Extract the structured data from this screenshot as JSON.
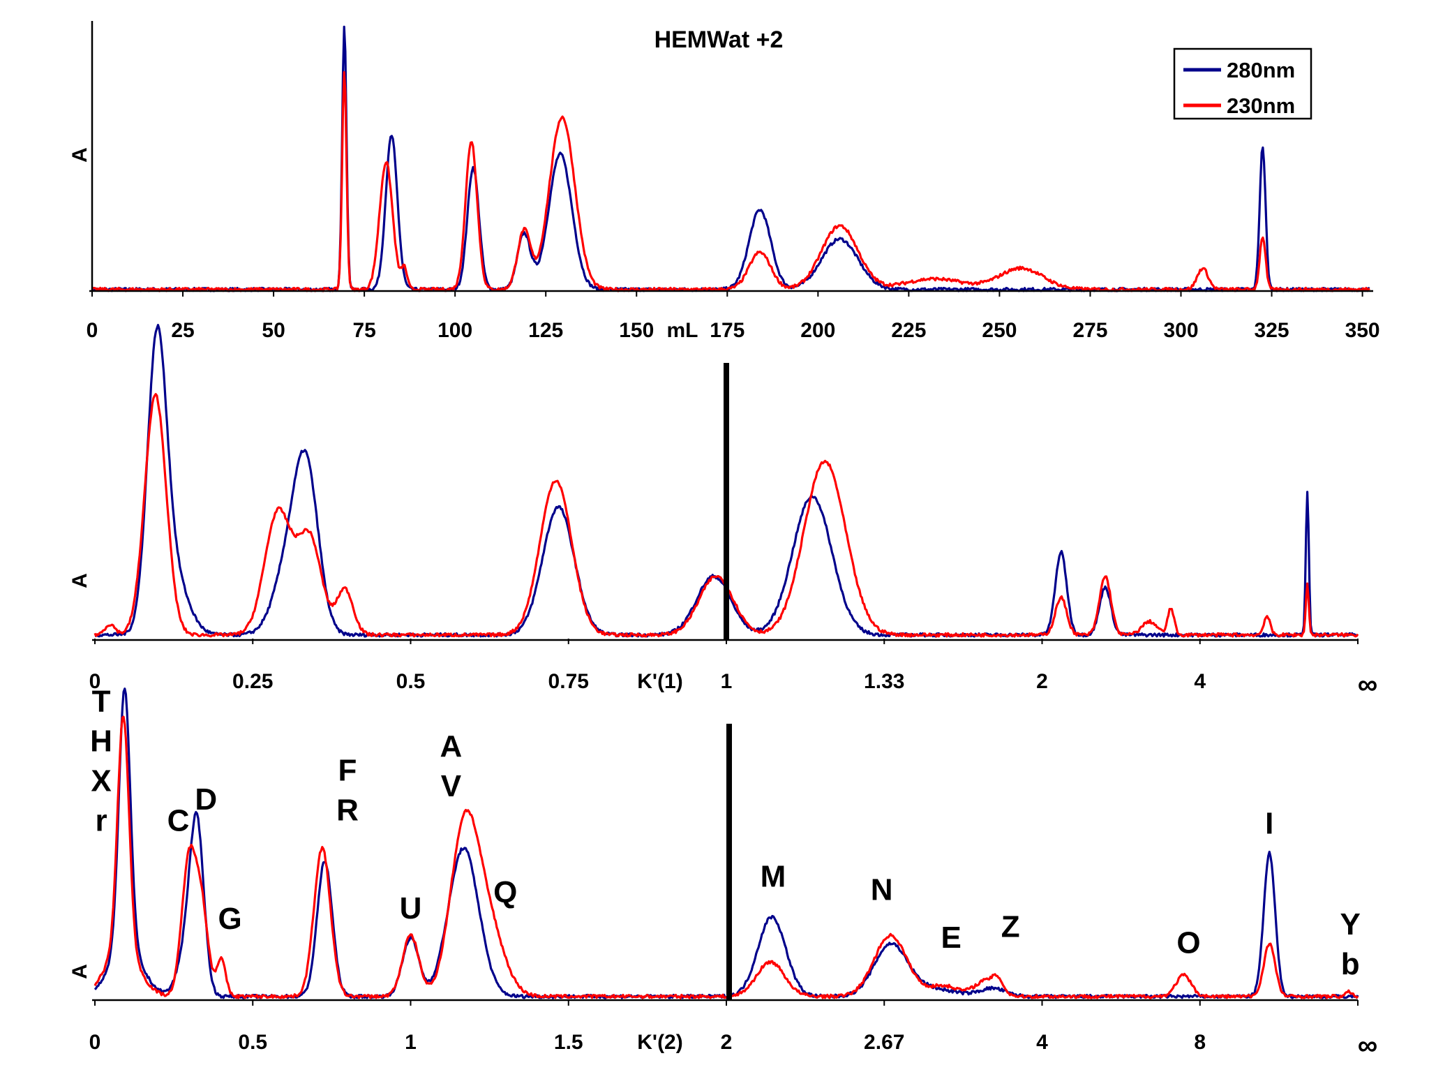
{
  "chart_data": [
    {
      "type": "line",
      "title": "HEMWat +2",
      "ylabel": "A",
      "xlabel": "mL",
      "xlim": [
        0,
        352
      ],
      "ylim": [
        0,
        1.0
      ],
      "ticks": [
        "0",
        "25",
        "50",
        "75",
        "100",
        "125",
        "150",
        "175",
        "200",
        "225",
        "250",
        "275",
        "300",
        "325",
        "350"
      ],
      "legend": {
        "position": "top-right",
        "entries": [
          {
            "name": "280nm",
            "color": "#00008b"
          },
          {
            "name": "230nm",
            "color": "#ff0000"
          }
        ]
      },
      "series": [
        {
          "name": "280nm",
          "color": "#00008b",
          "peaks": [
            {
              "x": 69.5,
              "h": 0.99,
              "w": 0.6
            },
            {
              "x": 82.5,
              "h": 0.58,
              "w": 1.6
            },
            {
              "x": 105,
              "h": 0.46,
              "w": 1.6
            },
            {
              "x": 119,
              "h": 0.21,
              "w": 1.8
            },
            {
              "x": 129,
              "h": 0.51,
              "w": 3.2
            },
            {
              "x": 184,
              "h": 0.3,
              "w": 3.0
            },
            {
              "x": 206,
              "h": 0.19,
              "w": 5.0
            },
            {
              "x": 322.5,
              "h": 0.54,
              "w": 0.8
            }
          ]
        },
        {
          "name": "230nm",
          "color": "#ff0000",
          "peaks": [
            {
              "x": 69.5,
              "h": 0.82,
              "w": 0.6
            },
            {
              "x": 81,
              "h": 0.48,
              "w": 1.8
            },
            {
              "x": 86,
              "h": 0.08,
              "w": 0.8
            },
            {
              "x": 104.5,
              "h": 0.56,
              "w": 1.6
            },
            {
              "x": 119,
              "h": 0.22,
              "w": 1.8
            },
            {
              "x": 129.5,
              "h": 0.65,
              "w": 3.5
            },
            {
              "x": 184,
              "h": 0.14,
              "w": 3.0
            },
            {
              "x": 206,
              "h": 0.24,
              "w": 5.0
            },
            {
              "x": 232,
              "h": 0.04,
              "w": 8.0
            },
            {
              "x": 256,
              "h": 0.08,
              "w": 6.0
            },
            {
              "x": 306,
              "h": 0.08,
              "w": 1.5
            },
            {
              "x": 322.5,
              "h": 0.2,
              "w": 0.8
            }
          ]
        }
      ]
    },
    {
      "type": "line",
      "ylabel": "A",
      "xlabel": "K'(1)",
      "xlim": [
        0,
        1
      ],
      "ylim": [
        0,
        1.0
      ],
      "ticks": [
        {
          "pos": 0,
          "label": "0"
        },
        {
          "pos": 0.125,
          "label": "0.25"
        },
        {
          "pos": 0.25,
          "label": "0.5"
        },
        {
          "pos": 0.375,
          "label": "0.75"
        },
        {
          "pos": 0.5,
          "label": "1"
        },
        {
          "pos": 0.625,
          "label": "1.33"
        },
        {
          "pos": 0.75,
          "label": "2"
        },
        {
          "pos": 0.875,
          "label": "4"
        },
        {
          "pos": 1.0,
          "label": "∞"
        }
      ],
      "divider_at": 0.5,
      "series": [
        {
          "name": "280nm",
          "color": "#00008b",
          "peaks": [
            {
              "x": 0.049,
              "h": 0.99,
              "w": 0.0075
            },
            {
              "x": 0.06,
              "h": 0.25,
              "w": 0.012
            },
            {
              "x": 0.155,
              "h": 0.28,
              "w": 0.012
            },
            {
              "x": 0.168,
              "h": 0.52,
              "w": 0.0095
            },
            {
              "x": 0.367,
              "h": 0.48,
              "w": 0.0125
            },
            {
              "x": 0.49,
              "h": 0.22,
              "w": 0.0135
            },
            {
              "x": 0.568,
              "h": 0.52,
              "w": 0.0155
            },
            {
              "x": 0.765,
              "h": 0.31,
              "w": 0.0045
            },
            {
              "x": 0.8,
              "h": 0.18,
              "w": 0.0045
            },
            {
              "x": 0.96,
              "h": 0.54,
              "w": 0.0012
            }
          ]
        },
        {
          "name": "230nm",
          "color": "#ff0000",
          "peaks": [
            {
              "x": 0.012,
              "h": 0.04,
              "w": 0.004
            },
            {
              "x": 0.048,
              "h": 0.9,
              "w": 0.0085
            },
            {
              "x": 0.145,
              "h": 0.46,
              "w": 0.0105
            },
            {
              "x": 0.17,
              "h": 0.36,
              "w": 0.0095
            },
            {
              "x": 0.198,
              "h": 0.17,
              "w": 0.0065
            },
            {
              "x": 0.365,
              "h": 0.58,
              "w": 0.0125
            },
            {
              "x": 0.492,
              "h": 0.22,
              "w": 0.0135
            },
            {
              "x": 0.578,
              "h": 0.65,
              "w": 0.0165
            },
            {
              "x": 0.765,
              "h": 0.14,
              "w": 0.0045
            },
            {
              "x": 0.8,
              "h": 0.22,
              "w": 0.0045
            },
            {
              "x": 0.835,
              "h": 0.05,
              "w": 0.006
            },
            {
              "x": 0.852,
              "h": 0.1,
              "w": 0.0025
            },
            {
              "x": 0.928,
              "h": 0.07,
              "w": 0.0025
            },
            {
              "x": 0.96,
              "h": 0.19,
              "w": 0.0012
            }
          ]
        }
      ]
    },
    {
      "type": "line",
      "ylabel": "A",
      "xlabel": "K'(2)",
      "xlim": [
        0,
        1
      ],
      "ylim": [
        0,
        1.0
      ],
      "ticks": [
        {
          "pos": 0,
          "label": "0"
        },
        {
          "pos": 0.125,
          "label": "0.5"
        },
        {
          "pos": 0.25,
          "label": "1"
        },
        {
          "pos": 0.375,
          "label": "1.5"
        },
        {
          "pos": 0.5,
          "label": "2"
        },
        {
          "pos": 0.625,
          "label": "2.67"
        },
        {
          "pos": 0.75,
          "label": "4"
        },
        {
          "pos": 0.875,
          "label": "8"
        },
        {
          "pos": 1.0,
          "label": "∞"
        }
      ],
      "divider_at": 0.5,
      "annotations": [
        {
          "text": "T",
          "x": 0.005,
          "y": 1.08
        },
        {
          "text": "H",
          "x": 0.005,
          "y": 0.93
        },
        {
          "text": "X",
          "x": 0.005,
          "y": 0.78
        },
        {
          "text": "r",
          "x": 0.005,
          "y": 0.63
        },
        {
          "text": "C",
          "x": 0.066,
          "y": 0.63
        },
        {
          "text": "D",
          "x": 0.088,
          "y": 0.71
        },
        {
          "text": "G",
          "x": 0.107,
          "y": 0.26
        },
        {
          "text": "F",
          "x": 0.2,
          "y": 0.82
        },
        {
          "text": "R",
          "x": 0.2,
          "y": 0.67
        },
        {
          "text": "U",
          "x": 0.25,
          "y": 0.3
        },
        {
          "text": "A",
          "x": 0.282,
          "y": 0.91
        },
        {
          "text": "V",
          "x": 0.282,
          "y": 0.76
        },
        {
          "text": "Q",
          "x": 0.325,
          "y": 0.36
        },
        {
          "text": "M",
          "x": 0.537,
          "y": 0.42
        },
        {
          "text": "N",
          "x": 0.623,
          "y": 0.37
        },
        {
          "text": "E",
          "x": 0.678,
          "y": 0.19
        },
        {
          "text": "Z",
          "x": 0.725,
          "y": 0.23
        },
        {
          "text": "O",
          "x": 0.866,
          "y": 0.17
        },
        {
          "text": "I",
          "x": 0.93,
          "y": 0.62
        },
        {
          "text": "Y",
          "x": 0.994,
          "y": 0.24
        },
        {
          "text": "b",
          "x": 0.994,
          "y": 0.09
        }
      ],
      "series": [
        {
          "name": "280nm",
          "color": "#00008b",
          "peaks": [
            {
              "x": 0.0235,
              "h": 0.98,
              "w": 0.0045
            },
            {
              "x": 0.0245,
              "h": 0.18,
              "w": 0.013
            },
            {
              "x": 0.081,
              "h": 0.59,
              "w": 0.0055
            },
            {
              "x": 0.073,
              "h": 0.18,
              "w": 0.007
            },
            {
              "x": 0.182,
              "h": 0.51,
              "w": 0.006
            },
            {
              "x": 0.25,
              "h": 0.22,
              "w": 0.0065
            },
            {
              "x": 0.292,
              "h": 0.56,
              "w": 0.012
            },
            {
              "x": 0.536,
              "h": 0.3,
              "w": 0.011
            },
            {
              "x": 0.63,
              "h": 0.19,
              "w": 0.013
            },
            {
              "x": 0.66,
              "h": 0.03,
              "w": 0.02
            },
            {
              "x": 0.711,
              "h": 0.03,
              "w": 0.01
            },
            {
              "x": 0.93,
              "h": 0.54,
              "w": 0.0045
            }
          ]
        },
        {
          "name": "230nm",
          "color": "#ff0000",
          "peaks": [
            {
              "x": 0.0225,
              "h": 0.88,
              "w": 0.0045
            },
            {
              "x": 0.0215,
              "h": 0.18,
              "w": 0.013
            },
            {
              "x": 0.074,
              "h": 0.48,
              "w": 0.0055
            },
            {
              "x": 0.084,
              "h": 0.34,
              "w": 0.0055
            },
            {
              "x": 0.1,
              "h": 0.14,
              "w": 0.0035
            },
            {
              "x": 0.18,
              "h": 0.56,
              "w": 0.0065
            },
            {
              "x": 0.25,
              "h": 0.23,
              "w": 0.0065
            },
            {
              "x": 0.292,
              "h": 0.58,
              "w": 0.011
            },
            {
              "x": 0.31,
              "h": 0.28,
              "w": 0.013
            },
            {
              "x": 0.535,
              "h": 0.13,
              "w": 0.011
            },
            {
              "x": 0.63,
              "h": 0.23,
              "w": 0.013
            },
            {
              "x": 0.672,
              "h": 0.04,
              "w": 0.012
            },
            {
              "x": 0.706,
              "h": 0.06,
              "w": 0.009
            },
            {
              "x": 0.715,
              "h": 0.04,
              "w": 0.004
            },
            {
              "x": 0.862,
              "h": 0.08,
              "w": 0.006
            },
            {
              "x": 0.93,
              "h": 0.2,
              "w": 0.0045
            },
            {
              "x": 0.993,
              "h": 0.02,
              "w": 0.002
            }
          ]
        }
      ]
    }
  ]
}
